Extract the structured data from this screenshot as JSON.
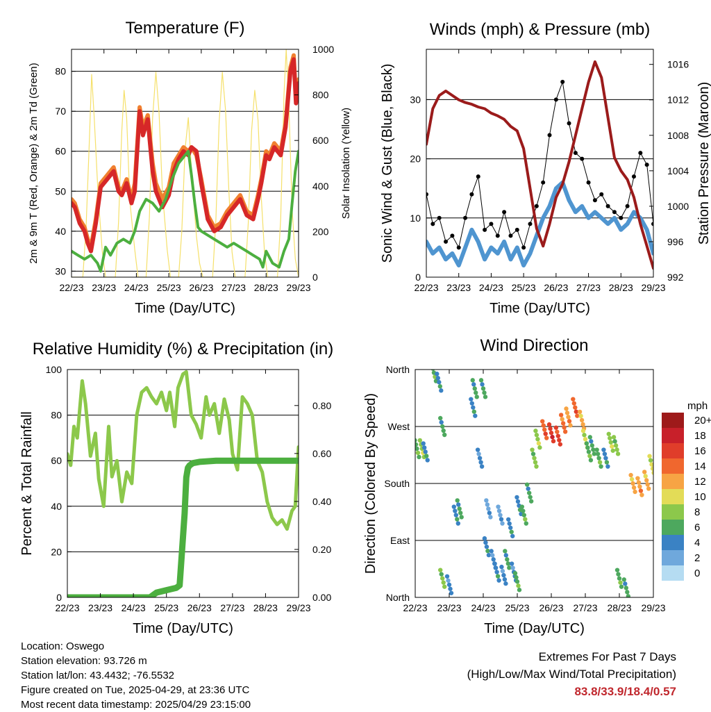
{
  "x_ticks": [
    "22/23",
    "23/23",
    "24/23",
    "25/23",
    "26/23",
    "27/23",
    "28/23",
    "29/23"
  ],
  "xlabel": "Time (Day/UTC)",
  "info": {
    "location": "Location: Oswego",
    "elevation": "Station elevation: 93.726 m",
    "latlon": "Station lat/lon: 43.4432; -76.5532",
    "created": "Figure created on Tue, 2025-04-29, at 23:36 UTC",
    "recent": "Most recent data timestamp: 2025/04/29 23:15:00"
  },
  "extremes": {
    "title": "Extremes For Past 7 Days",
    "subtitle": "(High/Low/Max Wind/Total Precipitation)",
    "values": "83.8/33.9/18.4/0.57"
  },
  "colors": {
    "t2m": "#d62728",
    "t9m": "#f08030",
    "td": "#4caf3f",
    "solar": "#f5e06a",
    "wind": "#4f95d0",
    "gust": "#000000",
    "pressure": "#9b1b1b",
    "rh": "#8cc84b",
    "precip": "#4caf3f"
  },
  "chart_data": [
    {
      "type": "line",
      "title": "Temperature (F)",
      "xlabel": "Time (Day/UTC)",
      "ylabel": "2m & 9m T (Red, Orange) & 2m Td (Green)",
      "y2label": "Solar Insolation (Yellow)",
      "xlim": [
        0,
        7
      ],
      "ylim": [
        28.5,
        85.5
      ],
      "y2lim": [
        0,
        1000
      ],
      "yticks": [
        30,
        40,
        50,
        60,
        70,
        80
      ],
      "y2ticks": [
        0,
        200,
        400,
        600,
        800,
        1000
      ],
      "grid": "horizontal",
      "series": [
        {
          "key": "t2m",
          "axis": "left",
          "x": [
            0,
            0.1,
            0.25,
            0.4,
            0.5,
            0.6,
            0.75,
            0.9,
            1.1,
            1.3,
            1.45,
            1.55,
            1.7,
            1.85,
            1.95,
            2.1,
            2.2,
            2.35,
            2.5,
            2.6,
            2.8,
            3.0,
            3.15,
            3.3,
            3.45,
            3.6,
            3.7,
            3.85,
            4.0,
            4.2,
            4.4,
            4.6,
            4.8,
            5.0,
            5.2,
            5.4,
            5.6,
            5.75,
            5.85,
            6.0,
            6.1,
            6.25,
            6.45,
            6.6,
            6.75,
            6.85,
            6.92,
            7.0
          ],
          "y": [
            47,
            46,
            42,
            40,
            37,
            35,
            42,
            51,
            53,
            55,
            50,
            49,
            52,
            47,
            50,
            70,
            64,
            68,
            55,
            50,
            46,
            49,
            55,
            58,
            60,
            59,
            61,
            60,
            52,
            43,
            40,
            41,
            44,
            46,
            48,
            44,
            43,
            48,
            52,
            59,
            58,
            61,
            59,
            66,
            80,
            83,
            72,
            77
          ]
        },
        {
          "key": "t9m",
          "axis": "left",
          "x": [
            0,
            0.1,
            0.25,
            0.4,
            0.5,
            0.6,
            0.75,
            0.9,
            1.1,
            1.3,
            1.45,
            1.55,
            1.7,
            1.85,
            1.95,
            2.1,
            2.2,
            2.35,
            2.5,
            2.6,
            2.8,
            3.0,
            3.15,
            3.3,
            3.45,
            3.6,
            3.7,
            3.85,
            4.0,
            4.2,
            4.4,
            4.6,
            4.8,
            5.0,
            5.2,
            5.4,
            5.6,
            5.75,
            5.85,
            6.0,
            6.1,
            6.25,
            6.45,
            6.6,
            6.75,
            6.85,
            6.92,
            7.0
          ],
          "y": [
            48,
            47,
            43,
            41,
            38,
            36,
            43,
            52,
            54,
            56,
            51,
            50,
            53,
            48,
            52,
            71,
            66,
            69,
            57,
            52,
            48,
            51,
            57,
            59,
            61,
            60,
            61,
            59,
            53,
            44,
            41,
            42,
            45,
            47,
            49,
            45,
            44,
            49,
            53,
            60,
            59,
            62,
            60,
            67,
            81,
            84,
            73,
            78
          ]
        },
        {
          "key": "td",
          "axis": "left",
          "x": [
            0,
            0.2,
            0.4,
            0.6,
            0.8,
            0.9,
            1.05,
            1.2,
            1.4,
            1.6,
            1.8,
            1.95,
            2.1,
            2.3,
            2.5,
            2.7,
            2.9,
            3.1,
            3.3,
            3.5,
            3.6,
            3.7,
            3.8,
            3.9,
            4.0,
            4.2,
            4.4,
            4.6,
            4.8,
            5.0,
            5.2,
            5.4,
            5.6,
            5.8,
            5.9,
            6.0,
            6.2,
            6.4,
            6.55,
            6.7,
            6.8,
            6.9,
            7.0
          ],
          "y": [
            35,
            34,
            33,
            34,
            32,
            30,
            36,
            34,
            37,
            38,
            37,
            40,
            45,
            48,
            47,
            45,
            48,
            53,
            57,
            59,
            60,
            54,
            47,
            41,
            40,
            39,
            38,
            37,
            36,
            37,
            36,
            35,
            34,
            33,
            31,
            35,
            32,
            31,
            35,
            38,
            47,
            55,
            60
          ]
        },
        {
          "key": "solar",
          "axis": "right",
          "x": [
            0,
            0.35,
            0.45,
            0.55,
            0.62,
            0.7,
            0.82,
            0.95,
            1.05,
            1.35,
            1.45,
            1.55,
            1.62,
            1.7,
            1.8,
            1.95,
            2.05,
            2.3,
            2.4,
            2.5,
            2.6,
            2.7,
            2.8,
            2.95,
            3.05,
            3.3,
            3.4,
            3.5,
            3.6,
            3.72,
            3.85,
            3.95,
            4.05,
            4.35,
            4.45,
            4.55,
            4.65,
            4.75,
            4.85,
            4.95,
            5.05,
            5.35,
            5.45,
            5.55,
            5.65,
            5.75,
            5.85,
            5.95,
            6.05,
            6.35,
            6.45,
            6.55,
            6.62,
            6.7,
            6.8,
            6.9,
            7.0
          ],
          "y": [
            0,
            0,
            220,
            600,
            890,
            700,
            360,
            110,
            0,
            0,
            240,
            640,
            820,
            700,
            330,
            120,
            0,
            0,
            260,
            700,
            900,
            720,
            380,
            120,
            0,
            0,
            200,
            560,
            700,
            420,
            180,
            60,
            0,
            0,
            250,
            680,
            900,
            730,
            380,
            110,
            0,
            0,
            240,
            640,
            820,
            690,
            350,
            110,
            0,
            0,
            260,
            800,
            1000,
            760,
            300,
            80,
            0
          ]
        }
      ]
    },
    {
      "type": "line",
      "title": "Winds (mph) & Pressure (mb)",
      "xlabel": "Time (Day/UTC)",
      "ylabel": "Sonic Wind & Gust (Blue, Black)",
      "y2label": "Station Pressure (Maroon)",
      "xlim": [
        0,
        7
      ],
      "ylim": [
        0,
        38.5
      ],
      "y2lim": [
        992,
        1017.7
      ],
      "yticks": [
        0,
        10,
        20,
        30
      ],
      "y2ticks": [
        992,
        996,
        1000,
        1004,
        1008,
        1012,
        1016
      ],
      "grid": "horizontal",
      "series": [
        {
          "key": "wind",
          "axis": "left",
          "x": [
            0,
            0.2,
            0.4,
            0.6,
            0.8,
            1.0,
            1.2,
            1.4,
            1.6,
            1.8,
            2.0,
            2.2,
            2.4,
            2.6,
            2.8,
            3.0,
            3.2,
            3.4,
            3.6,
            3.8,
            4.0,
            4.2,
            4.4,
            4.6,
            4.8,
            5.0,
            5.2,
            5.4,
            5.6,
            5.8,
            6.0,
            6.2,
            6.4,
            6.6,
            6.8,
            7.0
          ],
          "y": [
            6,
            4,
            5,
            3,
            4,
            2,
            5,
            8,
            6,
            3,
            5,
            4,
            6,
            3,
            5,
            2,
            4,
            7,
            10,
            12,
            15,
            16,
            13,
            11,
            12,
            10,
            11,
            10,
            9,
            10,
            8,
            9,
            11,
            10,
            8,
            4
          ]
        },
        {
          "key": "gust",
          "axis": "left",
          "x": [
            0,
            0.2,
            0.4,
            0.6,
            0.8,
            1.0,
            1.2,
            1.4,
            1.6,
            1.8,
            2.0,
            2.2,
            2.4,
            2.6,
            2.8,
            3.0,
            3.2,
            3.4,
            3.6,
            3.8,
            4.0,
            4.2,
            4.4,
            4.6,
            4.8,
            5.0,
            5.2,
            5.4,
            5.6,
            5.8,
            6.0,
            6.2,
            6.4,
            6.6,
            6.8,
            7.0
          ],
          "y": [
            14,
            9,
            10,
            6,
            7,
            5,
            10,
            14,
            17,
            8,
            9,
            7,
            11,
            7,
            8,
            5,
            9,
            12,
            16,
            24,
            30,
            33,
            26,
            21,
            20,
            16,
            13,
            14,
            12,
            11,
            10,
            12,
            17,
            21,
            19,
            9
          ]
        },
        {
          "key": "pressure",
          "axis": "right",
          "x": [
            0,
            0.2,
            0.4,
            0.6,
            0.8,
            1.0,
            1.2,
            1.4,
            1.6,
            1.8,
            2.0,
            2.2,
            2.4,
            2.6,
            2.8,
            3.0,
            3.2,
            3.4,
            3.6,
            3.8,
            4.0,
            4.2,
            4.4,
            4.6,
            4.8,
            5.0,
            5.2,
            5.4,
            5.6,
            5.8,
            6.0,
            6.2,
            6.4,
            6.6,
            6.8,
            7.0
          ],
          "y": [
            1007,
            1011,
            1012.5,
            1013,
            1012.5,
            1012,
            1011.7,
            1011.5,
            1011.2,
            1011,
            1010.5,
            1010.2,
            1009.8,
            1009,
            1008.5,
            1006.5,
            1002,
            997.5,
            995.5,
            998,
            1001,
            1002.5,
            1005,
            1008,
            1011,
            1014,
            1016.3,
            1014.5,
            1010,
            1005.5,
            1004,
            1003,
            1001,
            998,
            995.5,
            993
          ]
        }
      ]
    },
    {
      "type": "line",
      "title": "Relative Humidity (%) & Precipitation (in)",
      "xlabel": "Time (Day/UTC)",
      "ylabel": "Percent & Total Rainfall",
      "xlim": [
        0,
        7
      ],
      "ylim": [
        0,
        100
      ],
      "y2lim": [
        0,
        0.95
      ],
      "yticks": [
        0,
        20,
        40,
        60,
        80,
        100
      ],
      "y2ticks": [
        0.0,
        0.2,
        0.4,
        0.6,
        0.8
      ],
      "grid": "horizontal",
      "series": [
        {
          "key": "rh",
          "axis": "left",
          "x": [
            0,
            0.1,
            0.2,
            0.3,
            0.45,
            0.55,
            0.7,
            0.85,
            0.95,
            1.1,
            1.25,
            1.35,
            1.5,
            1.65,
            1.8,
            1.95,
            2.1,
            2.25,
            2.4,
            2.55,
            2.7,
            2.85,
            3.0,
            3.1,
            3.25,
            3.35,
            3.5,
            3.6,
            3.75,
            3.9,
            4.05,
            4.2,
            4.3,
            4.45,
            4.6,
            4.75,
            4.9,
            5.0,
            5.15,
            5.3,
            5.45,
            5.6,
            5.75,
            5.9,
            6.05,
            6.2,
            6.35,
            6.5,
            6.65,
            6.8,
            6.9,
            7.0
          ],
          "y": [
            63,
            58,
            75,
            70,
            95,
            85,
            62,
            72,
            52,
            40,
            75,
            53,
            60,
            42,
            55,
            50,
            80,
            90,
            92,
            88,
            85,
            90,
            82,
            90,
            75,
            92,
            98,
            99,
            80,
            76,
            70,
            88,
            80,
            85,
            72,
            87,
            78,
            63,
            56,
            88,
            85,
            80,
            60,
            55,
            42,
            35,
            32,
            34,
            30,
            38,
            40,
            66
          ]
        },
        {
          "key": "precip",
          "axis": "right",
          "x": [
            0,
            1.0,
            2.0,
            2.5,
            2.7,
            3.0,
            3.3,
            3.4,
            3.55,
            3.6,
            3.65,
            3.7,
            3.8,
            4.0,
            4.5,
            5.0,
            6.0,
            7.0
          ],
          "y": [
            0,
            0,
            0,
            0,
            0.02,
            0.03,
            0.04,
            0.05,
            0.35,
            0.5,
            0.54,
            0.55,
            0.56,
            0.565,
            0.57,
            0.57,
            0.57,
            0.57
          ]
        }
      ]
    },
    {
      "type": "scatter",
      "title": "Wind Direction",
      "xlabel": "Time (Day/UTC)",
      "ylabel": "Direction (Colored By Speed)",
      "xlim": [
        0,
        7
      ],
      "ylim": [
        0,
        360
      ],
      "yticks": [
        0,
        90,
        180,
        270,
        360
      ],
      "ytick_labels": [
        "North",
        "East",
        "South",
        "West",
        "North"
      ],
      "grid": "horizontal",
      "colorbar": {
        "unit": "mph",
        "labels": [
          "20+",
          "18",
          "16",
          "14",
          "12",
          "10",
          "8",
          "6",
          "4",
          "2",
          "0"
        ],
        "colors": [
          "#9e1a1a",
          "#c8202a",
          "#e03d2a",
          "#f0672e",
          "#f7a444",
          "#e3dc57",
          "#8cc84b",
          "#4da85e",
          "#3a82c4",
          "#6fa8dc",
          "#b5dcf2"
        ]
      },
      "series": [
        {
          "name": "clusters",
          "x": [
            0.05,
            0.2,
            0.3,
            0.55,
            0.7,
            0.8,
            0.8,
            1.0,
            1.2,
            1.3,
            1.7,
            1.75,
            1.9,
            2.0,
            2.1,
            2.15,
            2.3,
            2.4,
            2.5,
            2.6,
            2.7,
            2.8,
            2.9,
            3.0,
            3.05,
            3.2,
            3.35,
            3.5,
            3.6,
            3.8,
            4.0,
            4.2,
            4.35,
            4.5,
            4.7,
            4.9,
            5.0,
            5.1,
            5.2,
            5.4,
            5.6,
            5.75,
            5.9,
            6.0,
            6.2,
            6.4,
            6.6,
            6.8,
            6.95
          ],
          "y": [
            235,
            235,
            230,
            355,
            340,
            270,
            30,
            20,
            130,
            140,
            300,
            330,
            220,
            330,
            80,
            140,
            60,
            40,
            130,
            35,
            60,
            110,
            40,
            25,
            145,
            130,
            165,
            220,
            250,
            265,
            260,
            255,
            275,
            285,
            300,
            280,
            250,
            230,
            240,
            220,
            220,
            245,
            240,
            30,
            15,
            180,
            175,
            185,
            210
          ],
          "speed": [
            6,
            8,
            4,
            6,
            4,
            5,
            7,
            3,
            4,
            5,
            4,
            5,
            3,
            5,
            4,
            2,
            3,
            4,
            2,
            3,
            5,
            4,
            3,
            6,
            4,
            6,
            5,
            7,
            8,
            14,
            16,
            15,
            13,
            12,
            14,
            11,
            9,
            6,
            5,
            6,
            4,
            8,
            7,
            6,
            5,
            11,
            12,
            11,
            9
          ]
        }
      ]
    }
  ]
}
